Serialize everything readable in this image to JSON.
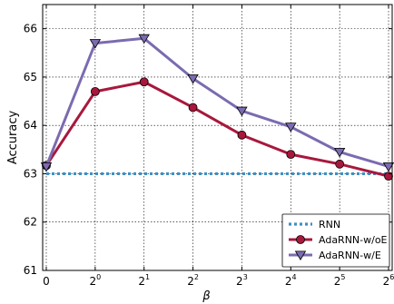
{
  "chart_data": {
    "type": "line",
    "xlabel": "β",
    "ylabel": "Accuracy",
    "x_tick_labels": [
      {
        "base": "0",
        "exp": ""
      },
      {
        "base": "2",
        "exp": "0"
      },
      {
        "base": "2",
        "exp": "1"
      },
      {
        "base": "2",
        "exp": "2"
      },
      {
        "base": "2",
        "exp": "3"
      },
      {
        "base": "2",
        "exp": "4"
      },
      {
        "base": "2",
        "exp": "5"
      },
      {
        "base": "2",
        "exp": "6"
      }
    ],
    "x_tick_label_values": [
      "0",
      "2^0",
      "2^1",
      "2^2",
      "2^3",
      "2^4",
      "2^5",
      "2^6"
    ],
    "yticks": [
      "61",
      "62",
      "63",
      "64",
      "65",
      "66"
    ],
    "ylim": [
      61,
      66.5
    ],
    "grid": true,
    "legend_position": "bottom-right",
    "series": [
      {
        "name": "RNN",
        "color": "#3f8fc4",
        "style": "dotted",
        "marker": "none",
        "values": [
          63.0,
          63.0,
          63.0,
          63.0,
          63.0,
          63.0,
          63.0,
          63.0
        ]
      },
      {
        "name": "AdaRNN-w/oE",
        "color": "#a8183c",
        "style": "solid",
        "marker": "circle",
        "values": [
          63.17,
          64.7,
          64.9,
          64.37,
          63.8,
          63.4,
          63.2,
          62.95
        ]
      },
      {
        "name": "AdaRNN-w/E",
        "color": "#7b6bb0",
        "style": "solid",
        "marker": "triangle-down",
        "values": [
          63.15,
          65.7,
          65.8,
          64.97,
          64.3,
          63.97,
          63.45,
          63.15
        ]
      }
    ]
  }
}
